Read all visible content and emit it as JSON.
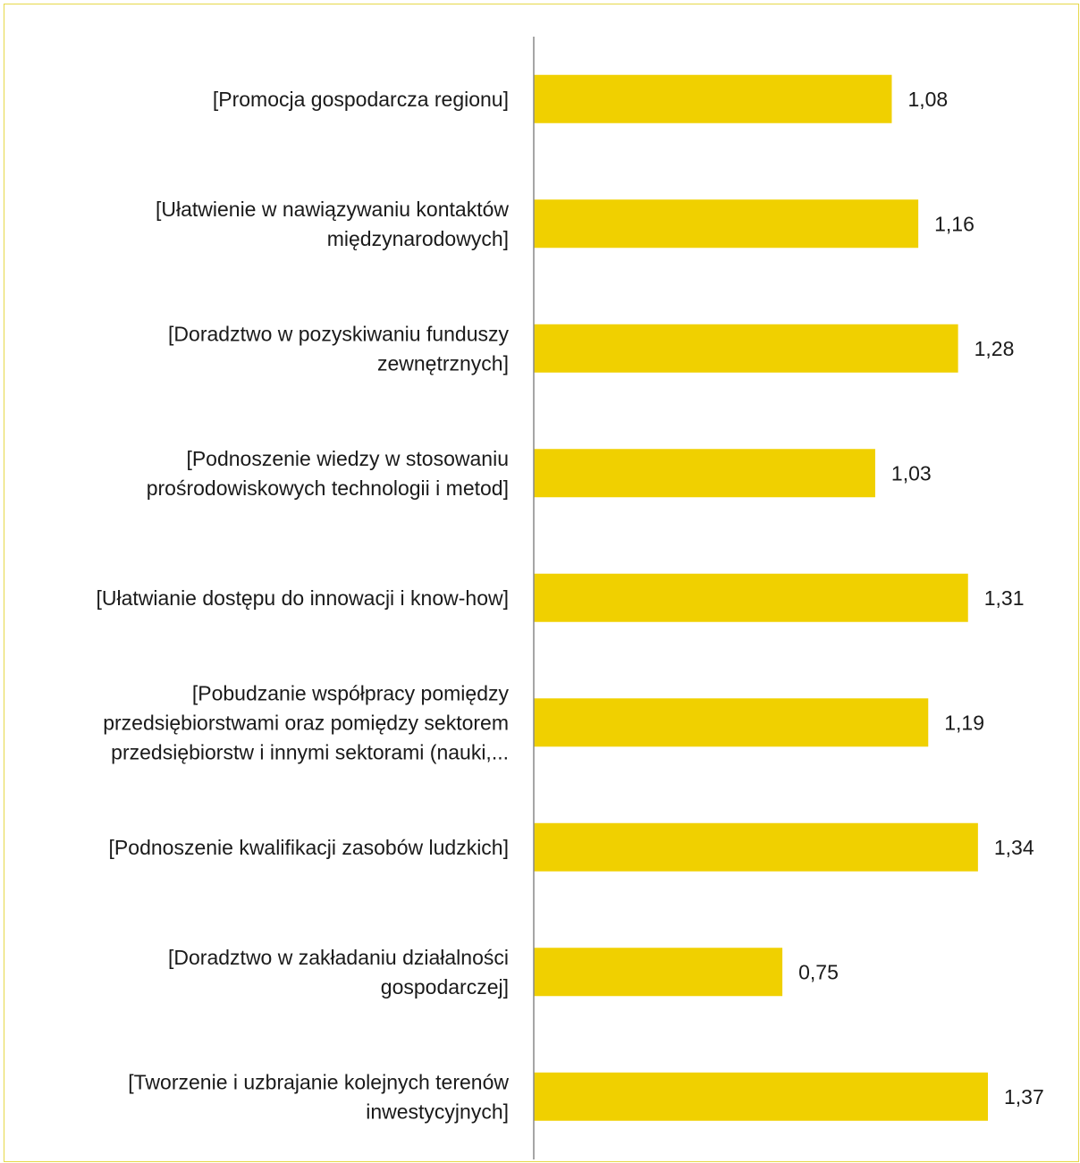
{
  "chart_data": {
    "type": "bar",
    "orientation": "horizontal",
    "categories": [
      [
        "[Promocja gospodarcza regionu]"
      ],
      [
        "[Ułatwienie w nawiązywaniu kontaktów",
        "międzynarodowych]"
      ],
      [
        "[Doradztwo w pozyskiwaniu funduszy",
        "zewnętrznych]"
      ],
      [
        "[Podnoszenie wiedzy w stosowaniu",
        "prośrodowiskowych technologii i metod]"
      ],
      [
        "[Ułatwianie dostępu do innowacji i know-how]"
      ],
      [
        "[Pobudzanie współpracy pomiędzy",
        "przedsiębiorstwami oraz pomiędzy sektorem",
        "przedsiębiorstw i innymi sektorami (nauki,..."
      ],
      [
        "[Podnoszenie kwalifikacji zasobów ludzkich]"
      ],
      [
        "[Doradztwo w zakładaniu działalności",
        "gospodarczej]"
      ],
      [
        "[Tworzenie i uzbrajanie kolejnych terenów",
        "inwestycyjnych]"
      ]
    ],
    "values": [
      1.08,
      1.16,
      1.28,
      1.03,
      1.31,
      1.19,
      1.34,
      0.75,
      1.37
    ],
    "value_labels": [
      "1,08",
      "1,16",
      "1,28",
      "1,03",
      "1,31",
      "1,19",
      "1,34",
      "0,75",
      "1,37"
    ],
    "xlim": [
      0,
      1.37
    ],
    "grid": false,
    "legend": "none",
    "colors": {
      "bar": "#f0d000",
      "axis": "#888888",
      "border": "#e6d84a",
      "text": "#1a1a1a"
    }
  }
}
